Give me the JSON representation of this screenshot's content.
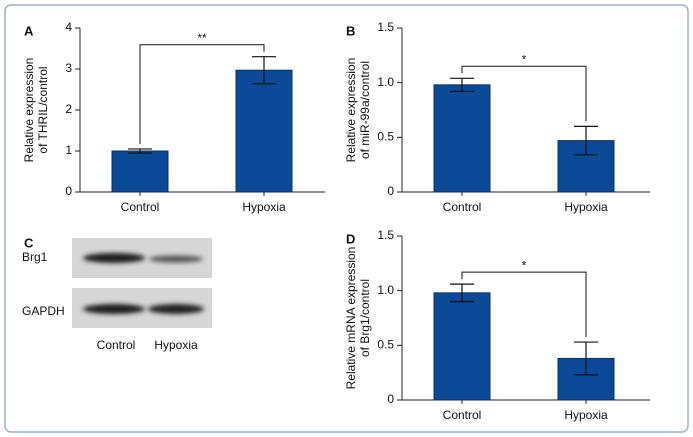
{
  "chart_data": [
    {
      "type": "bar",
      "panel_label": "A",
      "ylabel": [
        "Relative expression",
        "of THRIL/control"
      ],
      "categories": [
        "Control",
        "Hypoxia"
      ],
      "values": [
        1.0,
        2.97
      ],
      "errors": [
        0.05,
        0.33
      ],
      "color": "#0b4a98",
      "ylim": [
        0,
        4
      ],
      "yticks": [
        0,
        1,
        2,
        3,
        4
      ],
      "significance": "**"
    },
    {
      "type": "bar",
      "panel_label": "B",
      "ylabel": [
        "Relative expression",
        "of miR-99a/control"
      ],
      "categories": [
        "Control",
        "Hypoxia"
      ],
      "values": [
        0.98,
        0.47
      ],
      "errors": [
        0.06,
        0.13
      ],
      "color": "#0b4a98",
      "ylim": [
        0,
        1.5
      ],
      "yticks": [
        0,
        0.5,
        {
          "value": 1,
          "label": "1.0"
        },
        1.5
      ],
      "significance": "*"
    },
    {
      "type": "bar",
      "panel_label": "D",
      "ylabel": [
        "Relative mRNA expression",
        "of Brg1/control"
      ],
      "categories": [
        "Control",
        "Hypoxia"
      ],
      "values": [
        0.98,
        0.38
      ],
      "errors": [
        0.08,
        0.15
      ],
      "color": "#0b4a98",
      "ylim": [
        0,
        1.5
      ],
      "yticks": [
        0,
        0.5,
        {
          "value": 1,
          "label": "1.0"
        },
        1.5
      ],
      "significance": "*"
    }
  ],
  "blot": {
    "panel_label": "C",
    "rows": [
      "Brg1",
      "GAPDH"
    ],
    "lanes": [
      "Control",
      "Hypoxia"
    ]
  }
}
